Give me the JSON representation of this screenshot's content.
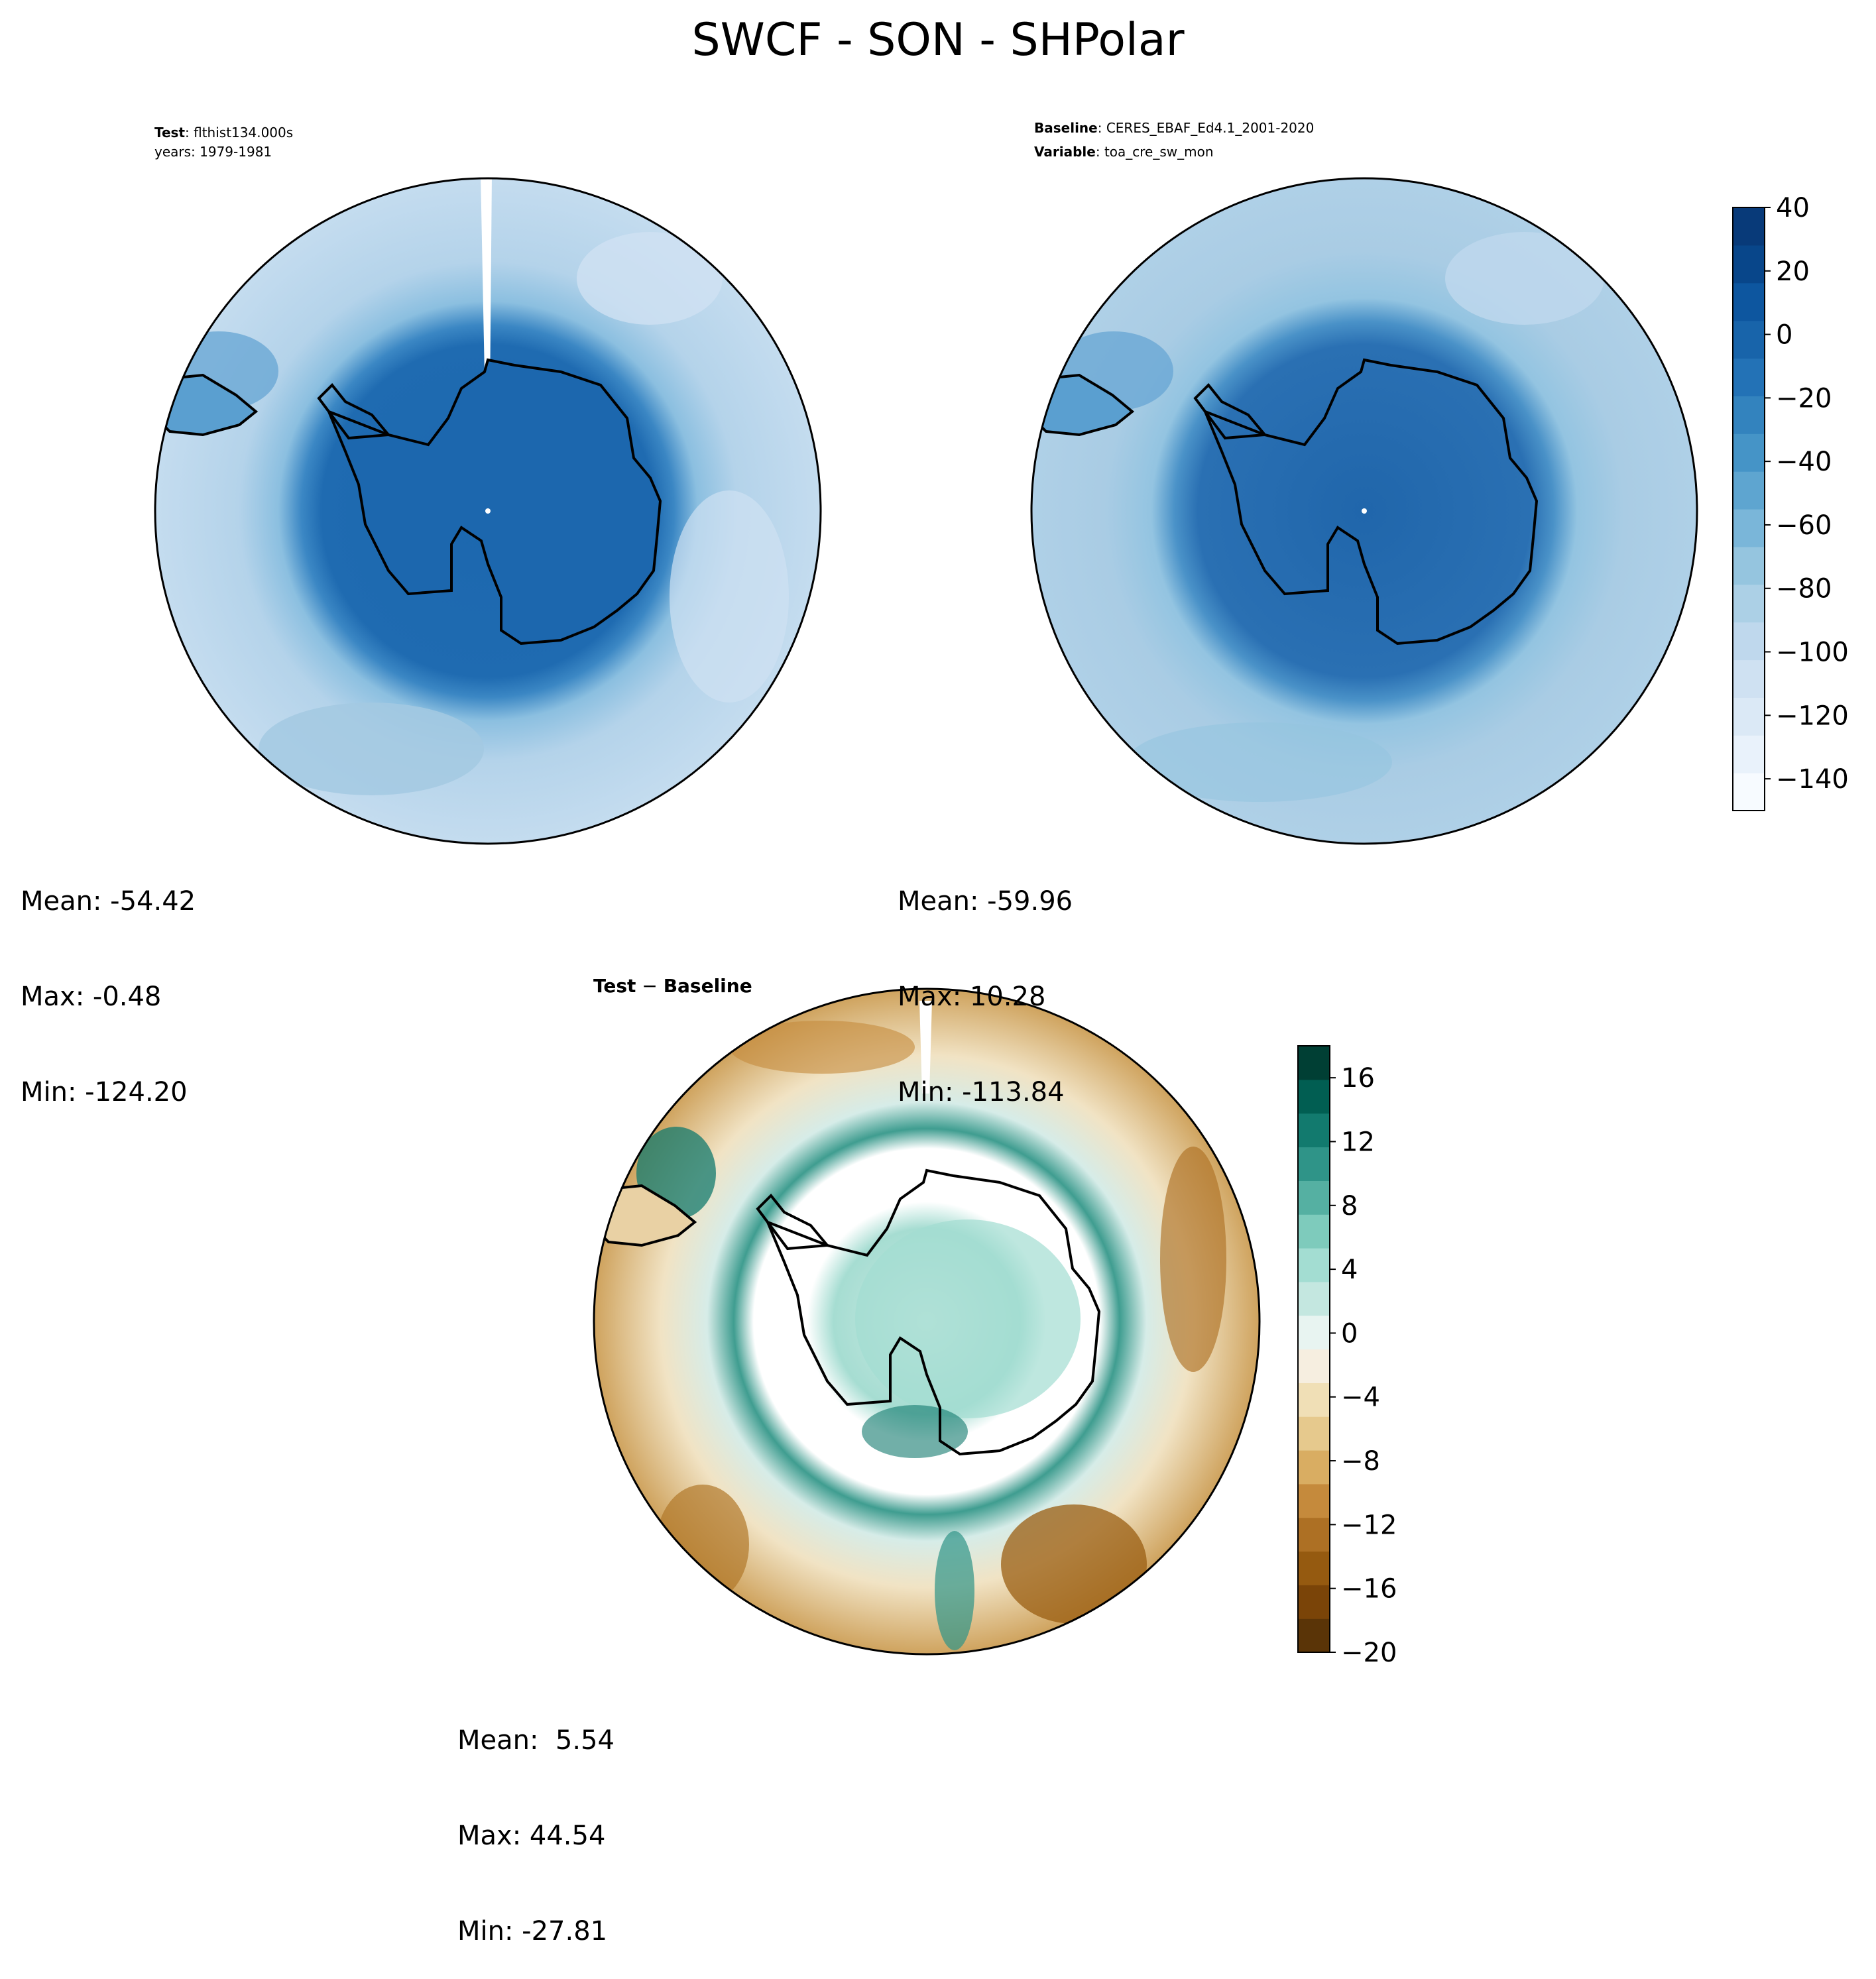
{
  "title": "SWCF - SON - SHPolar",
  "panels": {
    "test": {
      "header_line1_bold": "Test",
      "header_line1_rest": ": flthist134.000s",
      "header_line2": "years: 1979-1981",
      "mean": "Mean: -54.42",
      "max": "Max: -0.48",
      "min": "Min: -124.20"
    },
    "baseline": {
      "header_line1_bold": "Baseline",
      "header_line1_rest": ": CERES_EBAF_Ed4.1_2001-2020",
      "header_line2_bold": "Variable",
      "header_line2_rest": ": toa_cre_sw_mon",
      "mean": "Mean: -59.96",
      "max": "Max: 10.28",
      "min": "Min: -113.84"
    },
    "diff": {
      "header_prefix": "Test",
      "header_minus": " − ",
      "header_suffix": "Baseline",
      "mean": "Mean:  5.54",
      "max": "Max: 44.54",
      "min": "Min: -27.81"
    }
  },
  "colorbars": {
    "main": {
      "colormap": "Blues",
      "range": [
        -150,
        40
      ],
      "ticks": [
        "40",
        "20",
        "0",
        "−20",
        "−40",
        "−60",
        "−80",
        "−100",
        "−120",
        "−140"
      ],
      "colors": [
        "#f7fbff",
        "#e9f2fb",
        "#dbe9f6",
        "#cfe1f2",
        "#bfd8ed",
        "#acd0e6",
        "#95c5df",
        "#7ab6d9",
        "#5ea5d0",
        "#4594c7",
        "#3383be",
        "#2372b6",
        "#1864aa",
        "#0d569f",
        "#08468a",
        "#083a79"
      ]
    },
    "diff": {
      "colormap": "BrBG",
      "range": [
        -20,
        18
      ],
      "ticks": [
        "16",
        "12",
        "8",
        "4",
        "0",
        "−4",
        "−8",
        "−12",
        "−16",
        "−20"
      ],
      "colors": [
        "#5a3407",
        "#7a4408",
        "#955a10",
        "#ad7024",
        "#c58a3c",
        "#d9ad62",
        "#e6c98d",
        "#f0dfb6",
        "#f6eee0",
        "#e8f4f1",
        "#c4e7e0",
        "#a3ddd2",
        "#7ecbbc",
        "#55b0a2",
        "#2f9488",
        "#127a6e",
        "#015e52",
        "#003f34"
      ]
    }
  },
  "colors": {
    "land_main": "#1c67ae",
    "ocean_main": "#b7d4ea",
    "ocean_main_alt": "#a3c9e2",
    "coast": "#000000"
  }
}
